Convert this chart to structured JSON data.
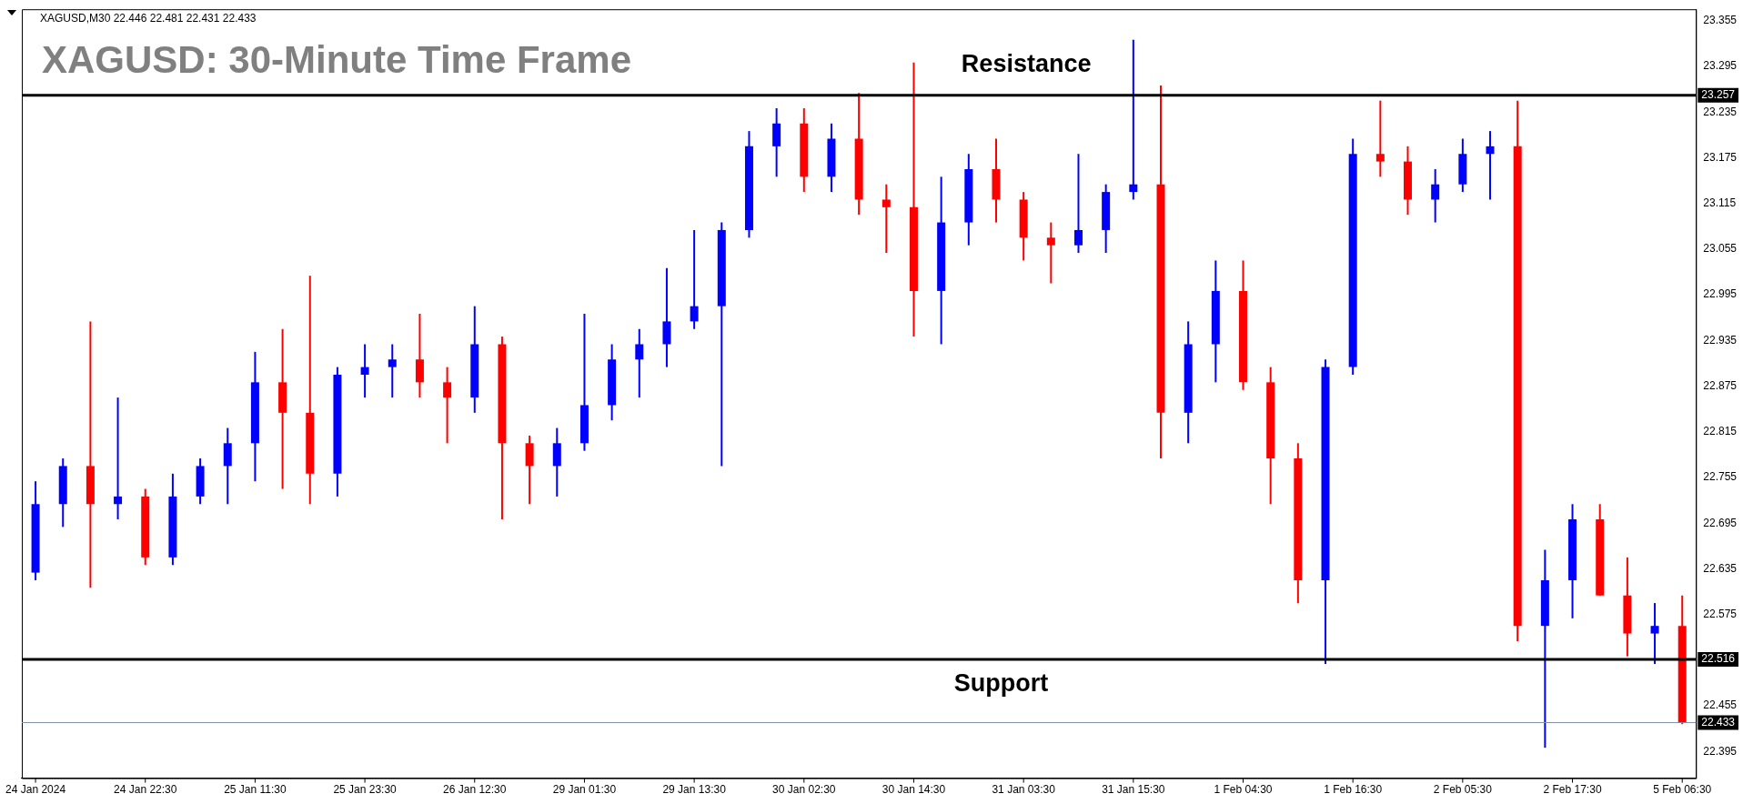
{
  "chart_data": {
    "type": "candlestick",
    "title": "XAGUSD: 30-Minute Time Frame",
    "annotations": [
      "XAGUSD,M30 22.446 22.481 22.431 22.433",
      "23.257",
      "22.516",
      "22.433"
    ],
    "categories": [
      "24 Jan 2024",
      null,
      null,
      null,
      "24 Jan 22:30",
      null,
      null,
      null,
      "25 Jan 11:30",
      null,
      null,
      null,
      "25 Jan 23:30",
      null,
      null,
      null,
      "26 Jan 12:30",
      null,
      null,
      null,
      "29 Jan 01:30",
      null,
      null,
      null,
      "29 Jan 13:30",
      null,
      null,
      null,
      "30 Jan 02:30",
      null,
      null,
      null,
      "30 Jan 14:30",
      null,
      null,
      null,
      "31 Jan 03:30",
      null,
      null,
      null,
      "31 Jan 15:30",
      null,
      null,
      null,
      "1 Feb 04:30",
      null,
      null,
      null,
      "1 Feb 16:30",
      null,
      null,
      null,
      "2 Feb 05:30",
      null,
      null,
      null,
      "2 Feb 17:30",
      null,
      null,
      null,
      "5 Feb 06:30"
    ],
    "ohlc": [
      [
        22.63,
        22.75,
        22.62,
        22.72
      ],
      [
        22.72,
        22.78,
        22.69,
        22.77
      ],
      [
        22.77,
        22.96,
        22.61,
        22.72
      ],
      [
        22.72,
        22.86,
        22.7,
        22.73
      ],
      [
        22.73,
        22.74,
        22.64,
        22.65
      ],
      [
        22.65,
        22.76,
        22.64,
        22.73
      ],
      [
        22.73,
        22.78,
        22.72,
        22.77
      ],
      [
        22.77,
        22.82,
        22.72,
        22.8
      ],
      [
        22.8,
        22.92,
        22.75,
        22.88
      ],
      [
        22.88,
        22.95,
        22.74,
        22.84
      ],
      [
        22.84,
        23.02,
        22.72,
        22.76
      ],
      [
        22.76,
        22.9,
        22.73,
        22.89
      ],
      [
        22.89,
        22.93,
        22.86,
        22.9
      ],
      [
        22.9,
        22.93,
        22.86,
        22.91
      ],
      [
        22.91,
        22.97,
        22.86,
        22.88
      ],
      [
        22.88,
        22.9,
        22.8,
        22.86
      ],
      [
        22.86,
        22.98,
        22.84,
        22.93
      ],
      [
        22.93,
        22.94,
        22.7,
        22.8
      ],
      [
        22.8,
        22.81,
        22.72,
        22.77
      ],
      [
        22.77,
        22.82,
        22.73,
        22.8
      ],
      [
        22.8,
        22.97,
        22.79,
        22.85
      ],
      [
        22.85,
        22.93,
        22.83,
        22.91
      ],
      [
        22.91,
        22.95,
        22.86,
        22.93
      ],
      [
        22.93,
        23.03,
        22.9,
        22.96
      ],
      [
        22.96,
        23.08,
        22.95,
        22.98
      ],
      [
        22.98,
        23.09,
        22.77,
        23.08
      ],
      [
        23.08,
        23.21,
        23.07,
        23.19
      ],
      [
        23.19,
        23.24,
        23.15,
        23.22
      ],
      [
        23.22,
        23.24,
        23.13,
        23.15
      ],
      [
        23.15,
        23.22,
        23.13,
        23.2
      ],
      [
        23.2,
        23.26,
        23.1,
        23.12
      ],
      [
        23.12,
        23.14,
        23.05,
        23.11
      ],
      [
        23.11,
        23.3,
        22.94,
        23.0
      ],
      [
        23.0,
        23.15,
        22.93,
        23.09
      ],
      [
        23.09,
        23.18,
        23.06,
        23.16
      ],
      [
        23.16,
        23.2,
        23.09,
        23.12
      ],
      [
        23.12,
        23.13,
        23.04,
        23.07
      ],
      [
        23.07,
        23.09,
        23.01,
        23.06
      ],
      [
        23.06,
        23.18,
        23.05,
        23.08
      ],
      [
        23.08,
        23.14,
        23.05,
        23.13
      ],
      [
        23.13,
        23.33,
        23.12,
        23.14
      ],
      [
        23.14,
        23.27,
        22.78,
        22.84
      ],
      [
        22.84,
        22.96,
        22.8,
        22.93
      ],
      [
        22.93,
        23.04,
        22.88,
        23.0
      ],
      [
        23.0,
        23.04,
        22.87,
        22.88
      ],
      [
        22.88,
        22.9,
        22.72,
        22.78
      ],
      [
        22.78,
        22.8,
        22.59,
        22.62
      ],
      [
        22.62,
        22.91,
        22.51,
        22.9
      ],
      [
        22.9,
        23.2,
        22.89,
        23.18
      ],
      [
        23.18,
        23.25,
        23.15,
        23.17
      ],
      [
        23.17,
        23.19,
        23.1,
        23.12
      ],
      [
        23.12,
        23.16,
        23.09,
        23.14
      ],
      [
        23.14,
        23.2,
        23.13,
        23.18
      ],
      [
        23.18,
        23.21,
        23.12,
        23.19
      ],
      [
        23.19,
        23.25,
        22.54,
        22.56
      ],
      [
        22.56,
        22.66,
        22.4,
        22.62
      ],
      [
        22.62,
        22.72,
        22.57,
        22.7
      ],
      [
        22.7,
        22.72,
        22.6,
        22.6
      ],
      [
        22.6,
        22.65,
        22.52,
        22.55
      ],
      [
        22.55,
        22.59,
        22.51,
        22.56
      ],
      [
        22.56,
        22.6,
        22.431,
        22.433
      ]
    ],
    "colors": [
      "#0000ff",
      "#0000ff",
      "#ff0000",
      "#0000ff",
      "#ff0000",
      "#0000ff",
      "#0000ff",
      "#0000ff",
      "#0000ff",
      "#ff0000",
      "#ff0000",
      "#0000ff",
      "#0000ff",
      "#0000ff",
      "#ff0000",
      "#ff0000",
      "#0000ff",
      "#ff0000",
      "#ff0000",
      "#0000ff",
      "#0000ff",
      "#0000ff",
      "#0000ff",
      "#0000ff",
      "#0000ff",
      "#0000ff",
      "#0000ff",
      "#0000ff",
      "#ff0000",
      "#0000ff",
      "#ff0000",
      "#ff0000",
      "#ff0000",
      "#0000ff",
      "#0000ff",
      "#ff0000",
      "#ff0000",
      "#ff0000",
      "#0000ff",
      "#0000ff",
      "#0000ff",
      "#ff0000",
      "#0000ff",
      "#0000ff",
      "#ff0000",
      "#ff0000",
      "#ff0000",
      "#0000ff",
      "#0000ff",
      "#ff0000",
      "#ff0000",
      "#0000ff",
      "#0000ff",
      "#0000ff",
      "#ff0000",
      "#0000ff",
      "#0000ff",
      "#ff0000",
      "#ff0000",
      "#0000ff",
      "#ff0000"
    ],
    "ylim": [
      22.36,
      23.37
    ],
    "yticks": [
      23.355,
      23.295,
      23.235,
      23.175,
      23.115,
      23.055,
      22.995,
      22.935,
      22.875,
      22.815,
      22.755,
      22.695,
      22.635,
      22.575,
      22.455,
      22.395
    ],
    "grid": false,
    "legend": false,
    "ref_lines": [
      {
        "axis": "y",
        "value": 23.257,
        "label": "Resistance",
        "color": "#000000"
      },
      {
        "axis": "y",
        "value": 22.516,
        "label": "Support",
        "color": "#000000"
      },
      {
        "axis": "y",
        "value": 22.433,
        "label": null,
        "color": "#8090a8"
      }
    ]
  }
}
